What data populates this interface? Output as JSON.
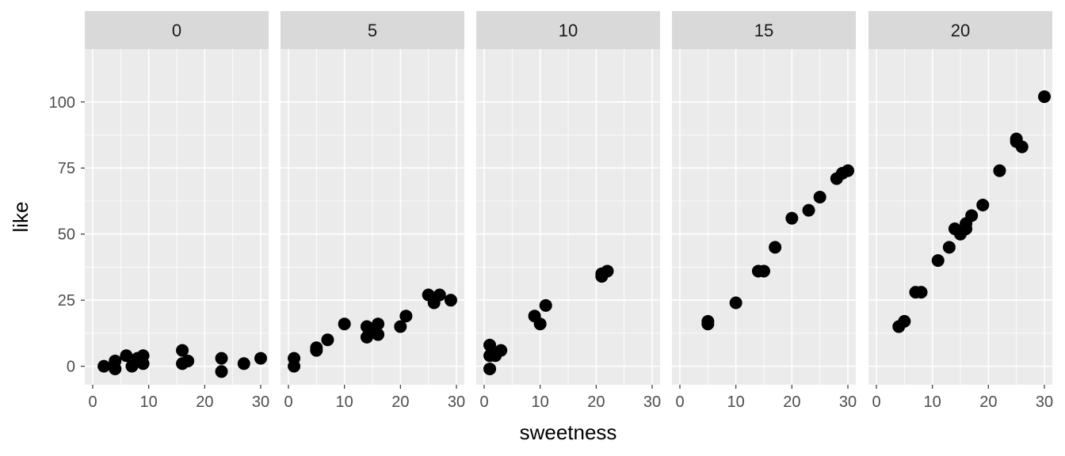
{
  "chart_data": {
    "type": "scatter",
    "facet_variable_values": [
      "0",
      "5",
      "10",
      "15",
      "20"
    ],
    "xlabel": "sweetness",
    "ylabel": "like",
    "xlim": [
      0,
      30
    ],
    "ylim": [
      -7,
      120
    ],
    "x_ticks": [
      0,
      10,
      20,
      30
    ],
    "y_ticks": [
      0,
      25,
      50,
      75,
      100
    ],
    "grid": true,
    "panel_background": "#ebebeb",
    "strip_background": "#d9d9d9",
    "point_color": "#000000",
    "panels": [
      {
        "label": "0",
        "points": [
          {
            "x": 2,
            "y": 0
          },
          {
            "x": 4,
            "y": 2
          },
          {
            "x": 4,
            "y": -1
          },
          {
            "x": 6,
            "y": 4
          },
          {
            "x": 7,
            "y": 0
          },
          {
            "x": 8,
            "y": 3
          },
          {
            "x": 9,
            "y": 4
          },
          {
            "x": 9,
            "y": 1
          },
          {
            "x": 16,
            "y": 6
          },
          {
            "x": 16,
            "y": 1
          },
          {
            "x": 17,
            "y": 2
          },
          {
            "x": 23,
            "y": 3
          },
          {
            "x": 23,
            "y": -2
          },
          {
            "x": 27,
            "y": 1
          },
          {
            "x": 30,
            "y": 3
          }
        ]
      },
      {
        "label": "5",
        "points": [
          {
            "x": 1,
            "y": 3
          },
          {
            "x": 1,
            "y": 0
          },
          {
            "x": 5,
            "y": 7
          },
          {
            "x": 5,
            "y": 6
          },
          {
            "x": 7,
            "y": 10
          },
          {
            "x": 10,
            "y": 16
          },
          {
            "x": 14,
            "y": 15
          },
          {
            "x": 14,
            "y": 11
          },
          {
            "x": 15,
            "y": 13
          },
          {
            "x": 16,
            "y": 16
          },
          {
            "x": 16,
            "y": 12
          },
          {
            "x": 20,
            "y": 15
          },
          {
            "x": 21,
            "y": 19
          },
          {
            "x": 25,
            "y": 27
          },
          {
            "x": 26,
            "y": 24
          },
          {
            "x": 27,
            "y": 27
          },
          {
            "x": 29,
            "y": 25
          }
        ]
      },
      {
        "label": "10",
        "points": [
          {
            "x": 1,
            "y": 8
          },
          {
            "x": 1,
            "y": 4
          },
          {
            "x": 1,
            "y": -1
          },
          {
            "x": 2,
            "y": 4
          },
          {
            "x": 3,
            "y": 6
          },
          {
            "x": 9,
            "y": 19
          },
          {
            "x": 10,
            "y": 16
          },
          {
            "x": 11,
            "y": 23
          },
          {
            "x": 21,
            "y": 34
          },
          {
            "x": 21,
            "y": 35
          },
          {
            "x": 22,
            "y": 36
          }
        ]
      },
      {
        "label": "15",
        "points": [
          {
            "x": 5,
            "y": 17
          },
          {
            "x": 5,
            "y": 16
          },
          {
            "x": 10,
            "y": 24
          },
          {
            "x": 14,
            "y": 36
          },
          {
            "x": 15,
            "y": 36
          },
          {
            "x": 17,
            "y": 45
          },
          {
            "x": 20,
            "y": 56
          },
          {
            "x": 23,
            "y": 59
          },
          {
            "x": 25,
            "y": 64
          },
          {
            "x": 28,
            "y": 71
          },
          {
            "x": 29,
            "y": 73
          },
          {
            "x": 30,
            "y": 74
          }
        ]
      },
      {
        "label": "20",
        "points": [
          {
            "x": 4,
            "y": 15
          },
          {
            "x": 5,
            "y": 17
          },
          {
            "x": 7,
            "y": 28
          },
          {
            "x": 8,
            "y": 28
          },
          {
            "x": 11,
            "y": 40
          },
          {
            "x": 13,
            "y": 45
          },
          {
            "x": 14,
            "y": 52
          },
          {
            "x": 15,
            "y": 50
          },
          {
            "x": 15,
            "y": 51
          },
          {
            "x": 16,
            "y": 52
          },
          {
            "x": 16,
            "y": 54
          },
          {
            "x": 17,
            "y": 57
          },
          {
            "x": 19,
            "y": 61
          },
          {
            "x": 22,
            "y": 74
          },
          {
            "x": 25,
            "y": 85
          },
          {
            "x": 25,
            "y": 86
          },
          {
            "x": 26,
            "y": 83
          },
          {
            "x": 30,
            "y": 102
          }
        ]
      }
    ]
  }
}
